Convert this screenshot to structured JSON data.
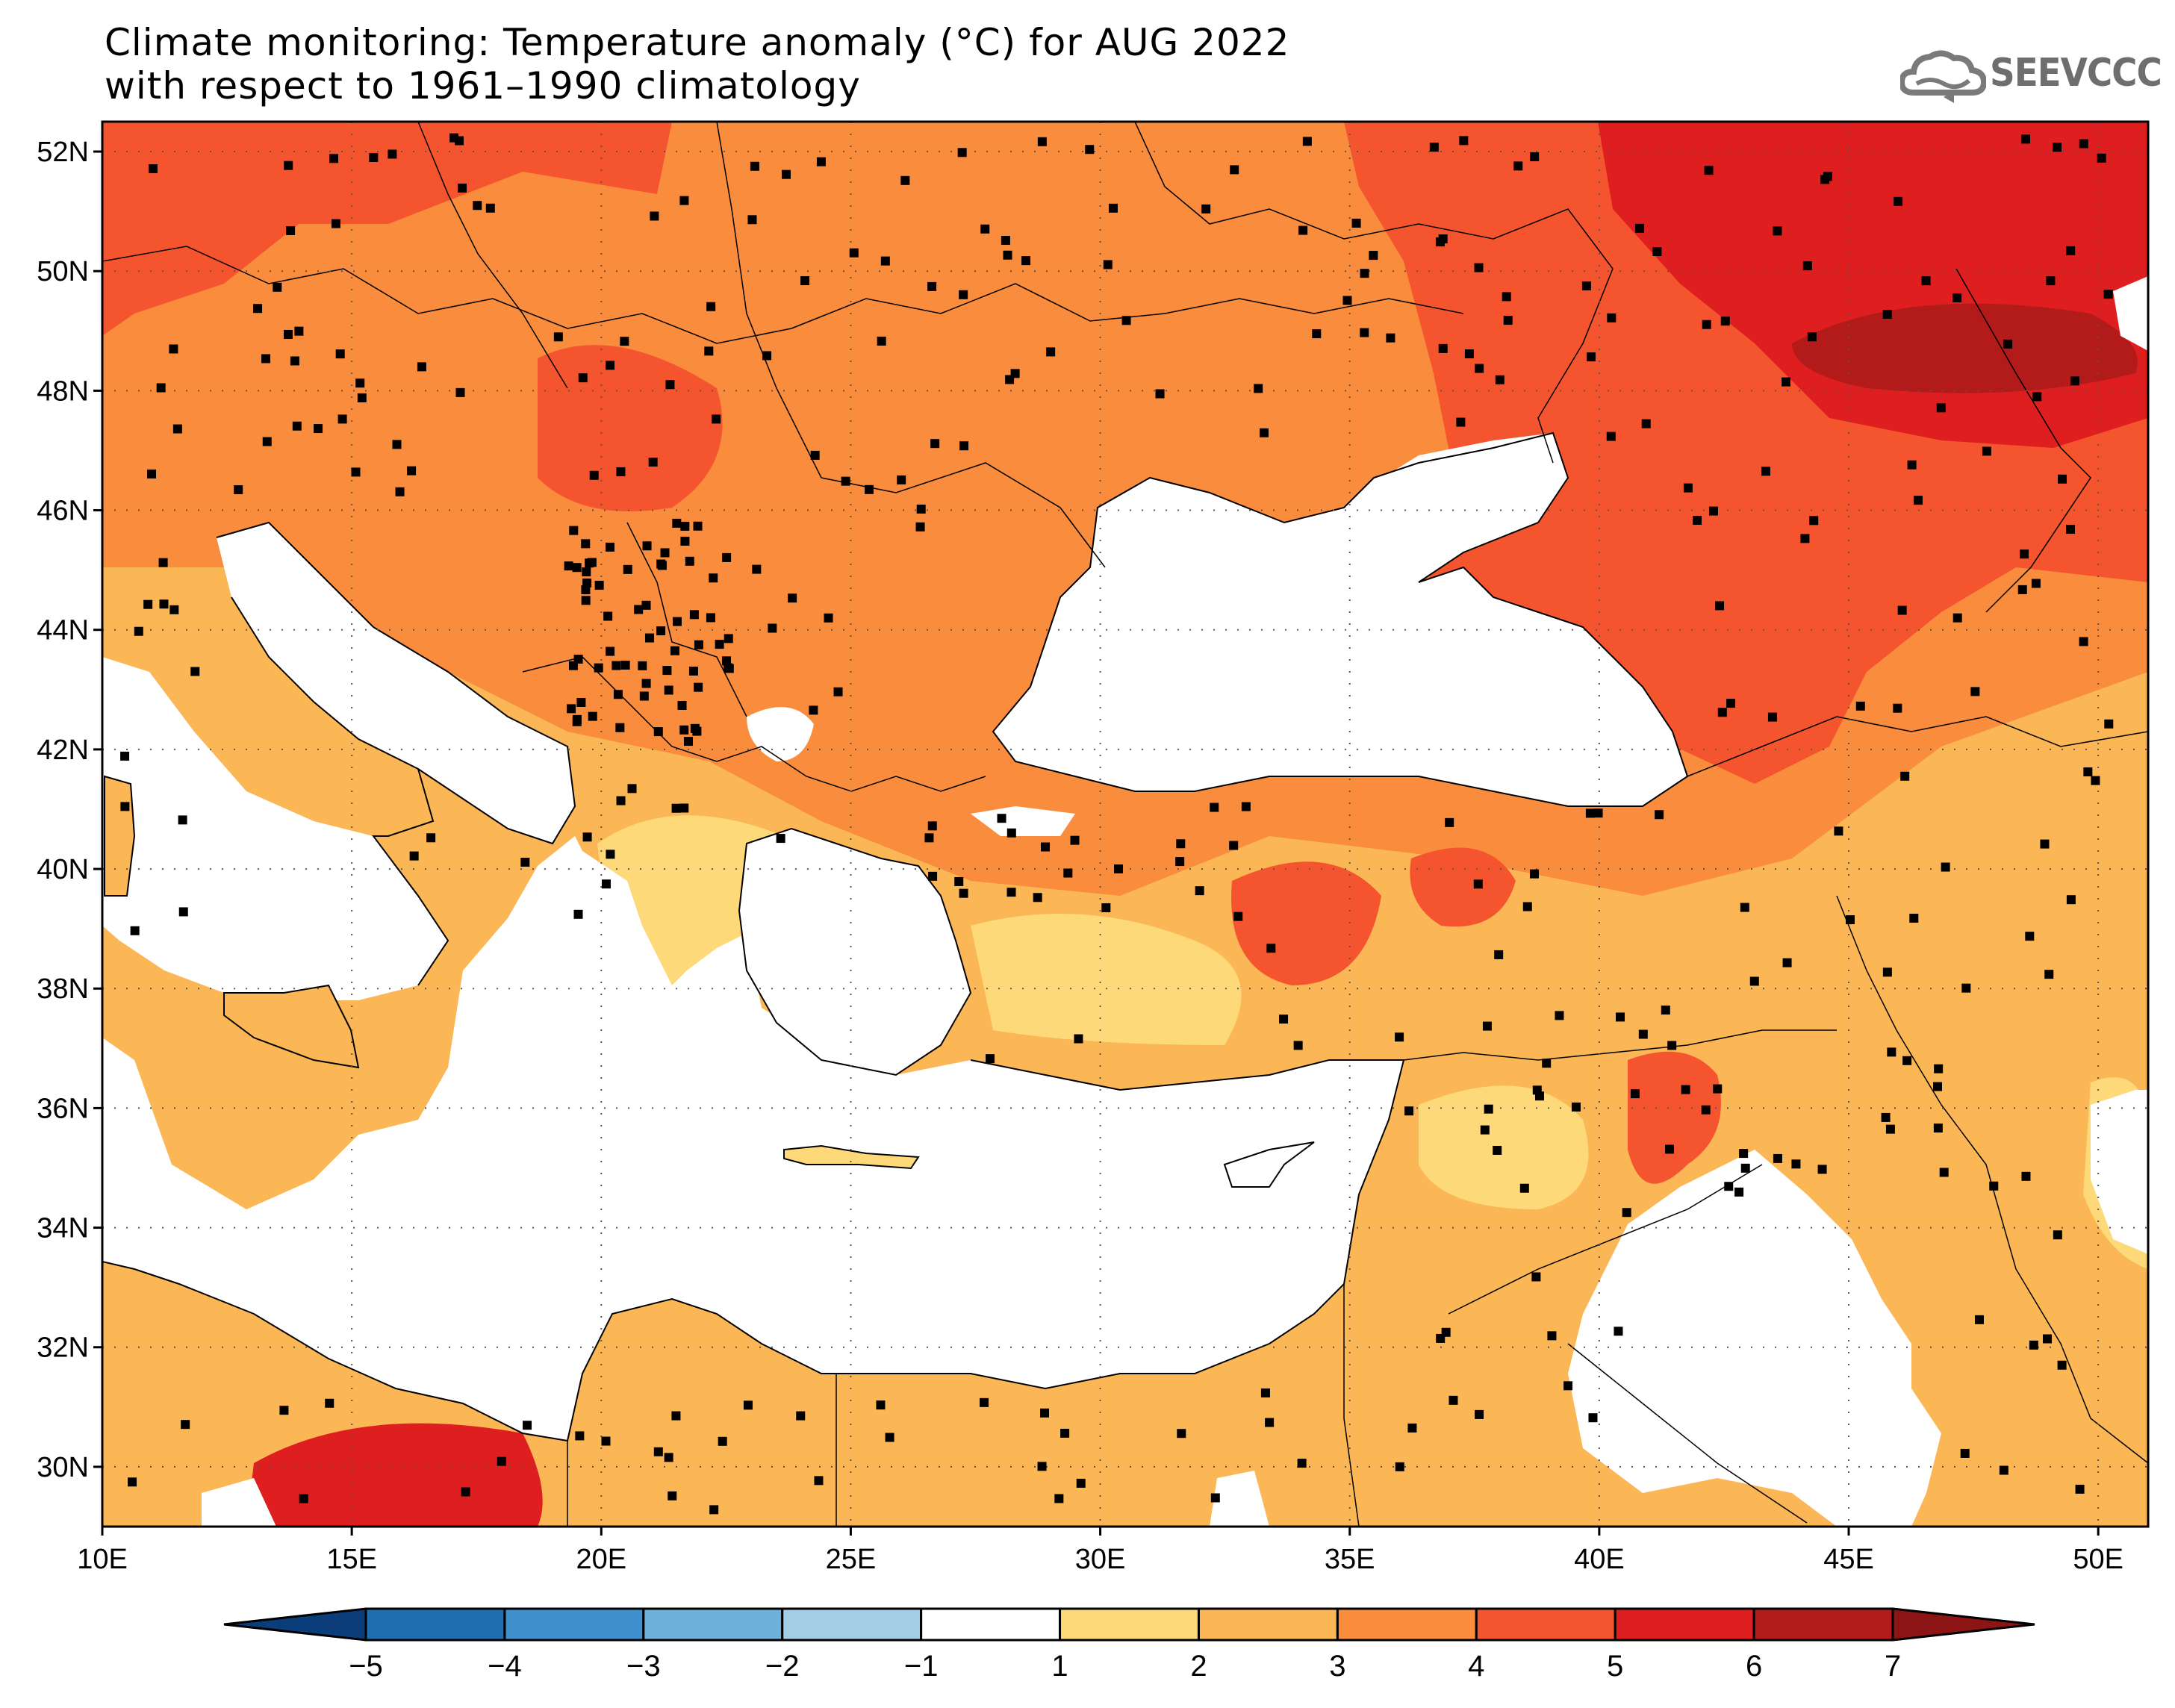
{
  "title": {
    "line1": "Climate monitoring: Temperature anomaly (°C) for AUG 2022",
    "line2": "with respect to 1961–1990 climatology"
  },
  "logo": {
    "text": "SEEVCCC",
    "icon": "cloud-icon"
  },
  "map": {
    "projection": "lat-lon",
    "lon_range": [
      10,
      51
    ],
    "lat_range": [
      29,
      52.5
    ],
    "lat_ticks": [
      "52N",
      "50N",
      "48N",
      "46N",
      "44N",
      "42N",
      "40N",
      "38N",
      "36N",
      "34N",
      "32N",
      "30N"
    ],
    "lon_ticks": [
      "10E",
      "15E",
      "20E",
      "25E",
      "30E",
      "35E",
      "40E",
      "45E",
      "50E"
    ],
    "grid": "dotted",
    "variable": "Temperature anomaly (°C)"
  },
  "colorbar": {
    "labels": [
      "-5",
      "-4",
      "-3",
      "-2",
      "-1",
      "1",
      "2",
      "3",
      "4",
      "5",
      "6",
      "7"
    ],
    "colors": [
      "#0a3d7a",
      "#1f6fb0",
      "#3f90cc",
      "#6db0da",
      "#a6cde6",
      "#ffffff",
      "#fdd97a",
      "#fbb656",
      "#f98c3d",
      "#f5552e",
      "#df1f1f",
      "#b31b1b",
      "#8c1414"
    ]
  }
}
